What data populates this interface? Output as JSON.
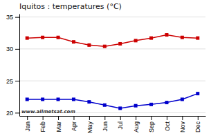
{
  "chart_data": {
    "type": "line",
    "title": "Iquitos : temperatures (°C)",
    "categories": [
      "Jan",
      "Feb",
      "Mar",
      "Apr",
      "May",
      "Jun",
      "Jul",
      "Aug",
      "Sep",
      "Oct",
      "Nov",
      "Dec"
    ],
    "series": [
      {
        "color": "#cc0000",
        "marker": "square",
        "values": [
          31.7,
          31.8,
          31.8,
          31.1,
          30.6,
          30.4,
          30.8,
          31.3,
          31.7,
          32.2,
          31.8,
          31.7
        ]
      },
      {
        "color": "#0000cc",
        "marker": "square",
        "values": [
          22.1,
          22.1,
          22.1,
          22.1,
          21.7,
          21.2,
          20.7,
          21.1,
          21.3,
          21.6,
          22.1,
          23.0
        ]
      }
    ],
    "ylim": [
      19.5,
      35.5
    ],
    "yticks": [
      20,
      25,
      30,
      35
    ],
    "grid": true,
    "annotations": [
      "www.allmetsat.com"
    ]
  }
}
